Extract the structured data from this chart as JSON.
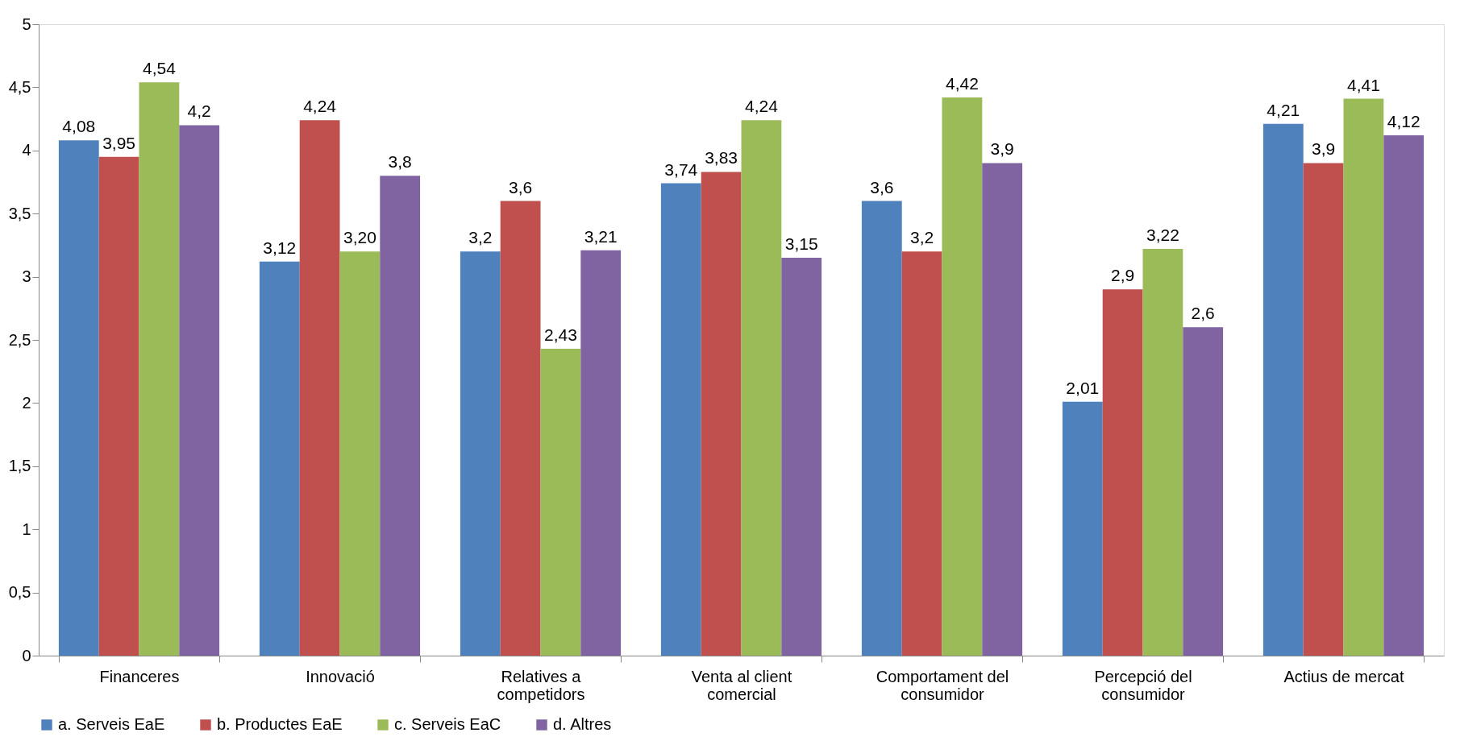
{
  "chart_data": {
    "type": "bar",
    "categories": [
      "Financeres",
      "Innovació",
      "Relatives a competidors",
      "Venta al client comercial",
      "Comportament del consumidor",
      "Percepció del consumidor",
      "Actius de mercat"
    ],
    "series": [
      {
        "name": "a. Serveis EaE",
        "color": "#4f81bd",
        "values": [
          4.08,
          3.12,
          3.2,
          3.74,
          3.6,
          2.01,
          4.21
        ],
        "value_labels": [
          "4,08",
          "3,12",
          "3,2",
          "3,74",
          "3,6",
          "2,01",
          "4,21"
        ]
      },
      {
        "name": "b. Productes EaE",
        "color": "#c0504d",
        "values": [
          3.95,
          4.24,
          3.6,
          3.83,
          3.2,
          2.9,
          3.9
        ],
        "value_labels": [
          "3,95",
          "4,24",
          "3,6",
          "3,83",
          "3,2",
          "2,9",
          "3,9"
        ]
      },
      {
        "name": "c. Serveis EaC",
        "color": "#9bbb59",
        "values": [
          4.54,
          3.2,
          2.43,
          4.24,
          4.42,
          3.22,
          4.41
        ],
        "value_labels": [
          "4,54",
          "3,20",
          "2,43",
          "4,24",
          "4,42",
          "3,22",
          "4,41"
        ]
      },
      {
        "name": "d. Altres",
        "color": "#8064a2",
        "values": [
          4.2,
          3.8,
          3.21,
          3.15,
          3.9,
          2.6,
          4.12
        ],
        "value_labels": [
          "4,2",
          "3,8",
          "3,21",
          "3,15",
          "3,9",
          "2,6",
          "4,12"
        ]
      }
    ],
    "ylim": [
      0,
      5
    ],
    "yticks": [
      0,
      {
        "value": 0.5,
        "label": "0,5"
      },
      1,
      {
        "value": 1.5,
        "label": "1,5"
      },
      2,
      {
        "value": 2.5,
        "label": "2,5"
      },
      3,
      {
        "value": 3.5,
        "label": "3,5"
      },
      4,
      {
        "value": 4.5,
        "label": "4,5"
      },
      5
    ],
    "grid": false,
    "legend": "bottom"
  }
}
